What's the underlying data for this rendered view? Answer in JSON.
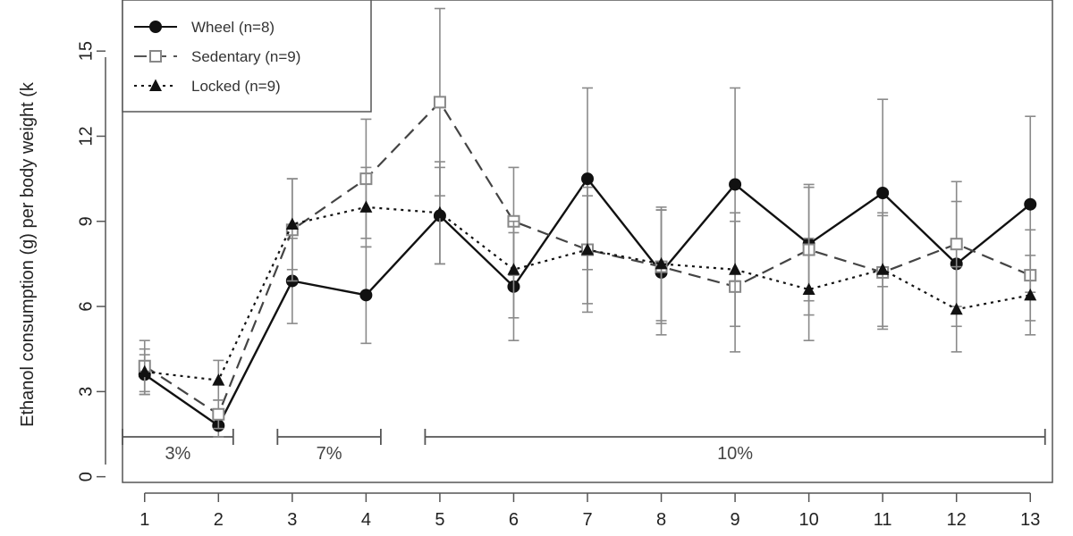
{
  "chart_data": {
    "type": "line",
    "xlabel": "",
    "ylabel": "Ethanol consumption (g) per body weight (k",
    "x": [
      1,
      2,
      3,
      4,
      5,
      6,
      7,
      8,
      9,
      10,
      11,
      12,
      13
    ],
    "xlim": [
      0.7,
      13.3
    ],
    "ylim": [
      -0.2,
      16.8
    ],
    "yticks": [
      0,
      3,
      6,
      9,
      12,
      15
    ],
    "legend_position": "top-left",
    "series": [
      {
        "name": "Wheel (n=8)",
        "marker": "filled-circle",
        "line": "solid",
        "color": "#111111",
        "values": [
          3.6,
          1.8,
          6.9,
          6.4,
          9.2,
          6.7,
          10.5,
          7.2,
          10.3,
          8.2,
          10.0,
          7.5,
          9.6
        ],
        "err": [
          0.7,
          0.4,
          1.5,
          1.7,
          1.7,
          1.9,
          3.2,
          2.2,
          3.4,
          2.0,
          3.3,
          2.2,
          3.1
        ]
      },
      {
        "name": "Sedentary (n=9)",
        "marker": "open-square",
        "line": "dashed",
        "color": "#555555",
        "values": [
          3.9,
          2.2,
          8.7,
          10.5,
          13.2,
          9.0,
          8.0,
          7.4,
          6.7,
          8.0,
          7.2,
          8.2,
          7.1
        ],
        "err": [
          0.9,
          0.5,
          1.8,
          2.1,
          3.3,
          1.9,
          1.9,
          2.0,
          2.3,
          2.3,
          2.0,
          2.2,
          1.6
        ]
      },
      {
        "name": "Locked (n=9)",
        "marker": "filled-triangle",
        "line": "dotted",
        "color": "#111111",
        "values": [
          3.7,
          3.4,
          8.9,
          9.5,
          9.3,
          7.3,
          8.0,
          7.5,
          7.3,
          6.6,
          7.3,
          5.9,
          6.4
        ],
        "err": [
          0.8,
          0.7,
          1.6,
          1.4,
          1.8,
          1.7,
          2.2,
          2.0,
          2.0,
          1.8,
          2.0,
          1.5,
          1.4
        ]
      }
    ],
    "phases": [
      {
        "label": "3%",
        "from": 0.7,
        "to": 2.2
      },
      {
        "label": "7%",
        "from": 2.8,
        "to": 4.2
      },
      {
        "label": "10%",
        "from": 4.8,
        "to": 13.2
      }
    ]
  }
}
